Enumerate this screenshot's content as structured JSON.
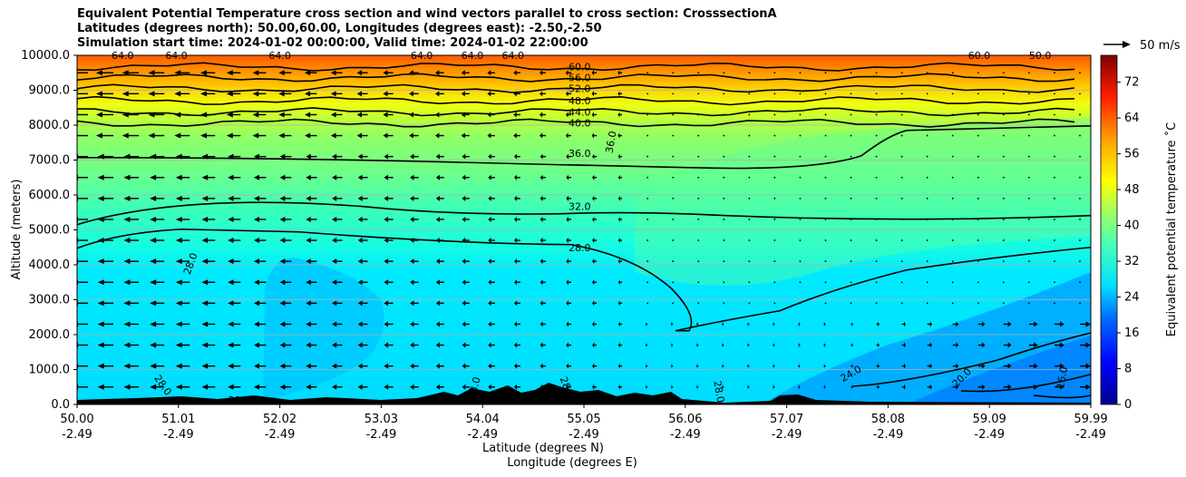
{
  "chart_data": {
    "type": "heatmap",
    "title_lines": [
      "Equivalent Potential Temperature cross section and wind vectors parallel to cross section: CrosssectionA",
      "Latitudes (degrees north): 50.00,60.00, Longitudes (degrees east): -2.50,-2.50",
      "Simulation start time: 2024-01-02 00:00:00, Valid time: 2024-01-02 22:00:00"
    ],
    "xlabel_line1": "Latitude (degrees N)",
    "xlabel_line2": "Longitude (degrees E)",
    "ylabel": "Altitude (meters)",
    "colorbar_label": "Equivalent potential temperature ˚C",
    "colorbar_ticks": [
      "0",
      "8",
      "16",
      "24",
      "32",
      "40",
      "48",
      "56",
      "64",
      "72"
    ],
    "colorbar_range": [
      0,
      78
    ],
    "colormap": [
      "#00008f",
      "#0000ff",
      "#007fff",
      "#00ffff",
      "#7fff7f",
      "#ffff00",
      "#ff7f00",
      "#ff0000",
      "#7f0000"
    ],
    "xlim": [
      0,
      10
    ],
    "ylim": [
      0,
      10000
    ],
    "x_ticks": [
      {
        "lat": "50.00",
        "lon": "-2.49"
      },
      {
        "lat": "51.01",
        "lon": "-2.49"
      },
      {
        "lat": "52.02",
        "lon": "-2.49"
      },
      {
        "lat": "53.03",
        "lon": "-2.49"
      },
      {
        "lat": "54.04",
        "lon": "-2.49"
      },
      {
        "lat": "55.05",
        "lon": "-2.49"
      },
      {
        "lat": "56.06",
        "lon": "-2.49"
      },
      {
        "lat": "57.07",
        "lon": "-2.49"
      },
      {
        "lat": "58.08",
        "lon": "-2.49"
      },
      {
        "lat": "59.09",
        "lon": "-2.49"
      },
      {
        "lat": "59.99",
        "lon": "-2.49"
      }
    ],
    "y_ticks": [
      "0.0",
      "1000.0",
      "2000.0",
      "3000.0",
      "4000.0",
      "5000.0",
      "6000.0",
      "7000.0",
      "8000.0",
      "9000.0",
      "10000.0"
    ],
    "grid": "horizontal",
    "wind_key_label": "50 m/s",
    "contour_levels": [
      {
        "value": 60,
        "label": "60.0",
        "y": 9670
      },
      {
        "value": 56,
        "label": "56.0",
        "y": 9360
      },
      {
        "value": 52,
        "label": "52.0",
        "y": 9050
      },
      {
        "value": 48,
        "label": "48.0",
        "y": 8700
      },
      {
        "value": 44,
        "label": "44.0",
        "y": 8380
      },
      {
        "value": 40,
        "label": "40.0",
        "y": 8060
      },
      {
        "value": 36,
        "label": "36.0",
        "y": 7200
      },
      {
        "value": 32,
        "label": "32.0",
        "y": 5670
      },
      {
        "value": 28,
        "label": "28.0",
        "y": 4500
      },
      {
        "value": 24,
        "label": "24.0",
        "y": 750
      },
      {
        "value": 20,
        "label": "20.0",
        "y": 550
      },
      {
        "value": 16,
        "label": "16.0",
        "y": 650
      }
    ],
    "extra_contour_labels": [
      {
        "label": "64.0",
        "x": 0.45,
        "y": 9900
      },
      {
        "label": "64.0",
        "x": 0.98,
        "y": 9900
      },
      {
        "label": "64.0",
        "x": 2.0,
        "y": 9900
      },
      {
        "label": "64.0",
        "x": 3.4,
        "y": 9900
      },
      {
        "label": "64.0",
        "x": 3.9,
        "y": 9900
      },
      {
        "label": "64.0",
        "x": 4.3,
        "y": 9900
      },
      {
        "label": "60.0",
        "x": 8.9,
        "y": 9900
      },
      {
        "label": "50.0",
        "x": 9.5,
        "y": 9900
      },
      {
        "label": "36.0",
        "x": 5.3,
        "y": 7500,
        "rotate": -80
      },
      {
        "label": "28.0",
        "x": 1.15,
        "y": 4000,
        "rotate": -70
      },
      {
        "label": "28.0",
        "x": 0.82,
        "y": 500,
        "rotate": 55
      },
      {
        "label": "28.0",
        "x": 1.6,
        "y": 30
      },
      {
        "label": "28.0",
        "x": 3.95,
        "y": 450,
        "rotate": -75
      },
      {
        "label": "28.0",
        "x": 4.8,
        "y": 450,
        "rotate": 70
      },
      {
        "label": "28.0",
        "x": 6.3,
        "y": 350,
        "rotate": 80
      },
      {
        "label": "20.0",
        "x": 8.75,
        "y": 700,
        "rotate": -45
      },
      {
        "label": "16.0",
        "x": 9.75,
        "y": 750,
        "rotate": -80
      },
      {
        "label": "24.0",
        "x": 7.65,
        "y": 800,
        "rotate": -30
      }
    ]
  }
}
